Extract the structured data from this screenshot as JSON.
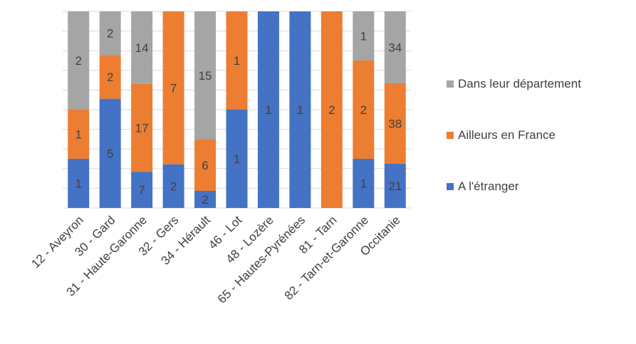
{
  "chart_data": {
    "type": "bar",
    "stacked": "percent",
    "categories": [
      "12 - Aveyron",
      "30 - Gard",
      "31 - Haute-Garonne",
      "32 - Gers",
      "34 - Hérault",
      "46 - Lot",
      "48 - Lozère",
      "65 - Hautes-Pyrénées",
      "81 - Tarn",
      "82 - Tarn-et-Garonne",
      "Occitanie"
    ],
    "series": [
      {
        "name": "A l'étranger",
        "color": "#4472C4",
        "values": [
          1,
          5,
          7,
          2,
          2,
          1,
          1,
          1,
          0,
          1,
          21
        ]
      },
      {
        "name": "Ailleurs en France",
        "color": "#ED7D31",
        "values": [
          1,
          2,
          17,
          7,
          6,
          1,
          0,
          0,
          2,
          2,
          38
        ]
      },
      {
        "name": "Dans leur département",
        "color": "#A5A5A5",
        "values": [
          2,
          2,
          14,
          0,
          15,
          0,
          0,
          0,
          0,
          1,
          34
        ]
      }
    ],
    "ylim": [
      0,
      100
    ],
    "grid": true,
    "legend_position": "right"
  }
}
